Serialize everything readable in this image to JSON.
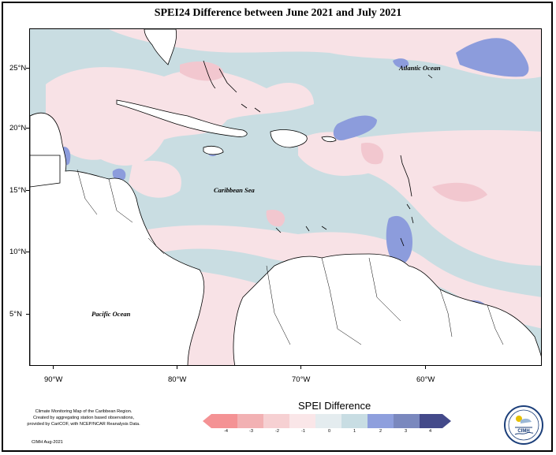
{
  "title": "SPEI24 Difference between June 2021 and July 2021",
  "lat_labels": [
    "25°N",
    "20°N",
    "15°N",
    "10°N",
    "5°N"
  ],
  "lon_labels": [
    "90°W",
    "80°W",
    "70°W",
    "60°W"
  ],
  "ocean_labels": {
    "atlantic": "Atlantic Ocean",
    "caribbean": "Caribbean Sea",
    "pacific": "Pacific Ocean"
  },
  "legend": {
    "title": "SPEI Difference",
    "ticks": [
      "-4",
      "-3",
      "-2",
      "-1",
      "0",
      "1",
      "2",
      "3",
      "4"
    ],
    "colors": [
      "#f49294",
      "#f2b1b3",
      "#f6d0d2",
      "#fae6e8",
      "#e4ecef",
      "#c8dde3",
      "#8e9fdd",
      "#7a88be",
      "#444a8a"
    ]
  },
  "credit": {
    "line1": "Climate Monitoring Map of the Caribbean Region.",
    "line2": "Created by aggregating station based observations,",
    "line3": "provided by CariCOF, with NCEP/NCAR Reanalysis Data.",
    "footer": "CIMH Aug-2021"
  },
  "logo_text": "CIMH",
  "colors": {
    "sea_neutral": "#c9dde2",
    "dry_light": "#f8e2e6",
    "dry_medium": "#f2c7cf",
    "wet_medium": "#8c9cdc",
    "land": "#ffffff"
  }
}
